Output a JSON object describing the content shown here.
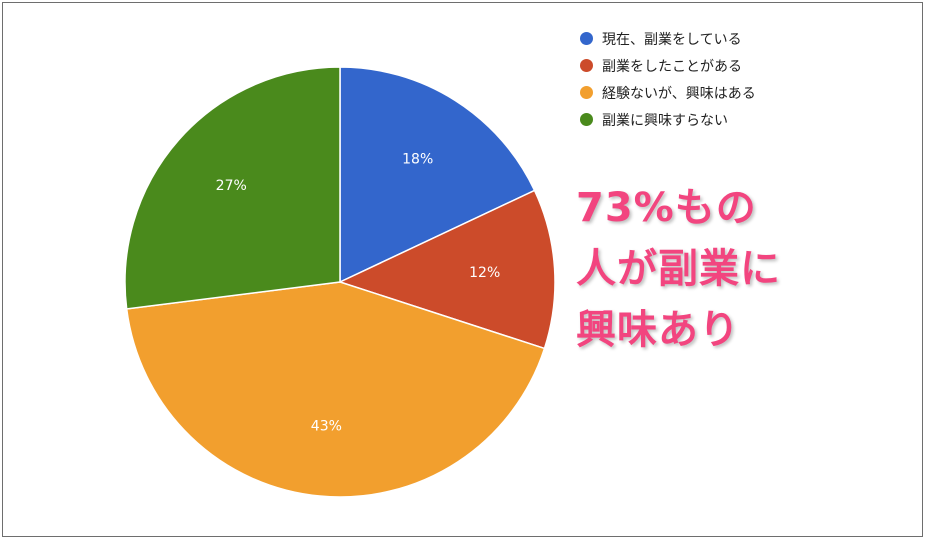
{
  "chart_data": {
    "type": "pie",
    "categories": [
      "現在、副業をしている",
      "副業をしたことがある",
      "経験ないが、興味はある",
      "副業に興味すらない"
    ],
    "values": [
      18,
      12,
      43,
      27
    ],
    "value_labels": [
      "18%",
      "12%",
      "43%",
      "27%"
    ],
    "colors": [
      "#3366cc",
      "#cc4b2a",
      "#f29f2e",
      "#4a8a1c"
    ],
    "start_angle_deg": 0,
    "direction": "clockwise",
    "legend_position": "top-right"
  },
  "callout": {
    "lines": [
      "73%もの",
      "人が副業に",
      "興味あり"
    ],
    "color": "#f2457f"
  }
}
